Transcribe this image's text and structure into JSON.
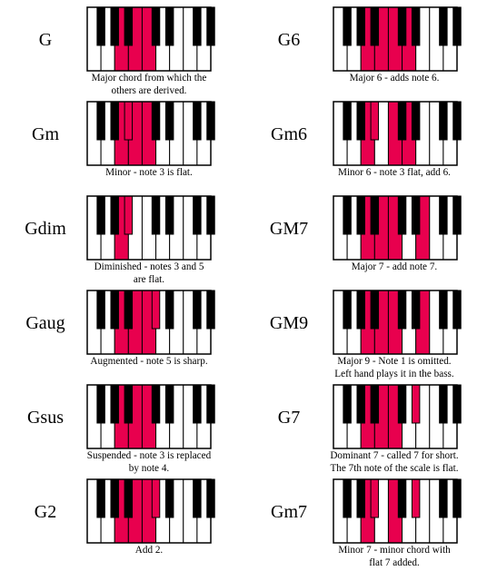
{
  "title": "",
  "colors": {
    "highlight": "#e8004e",
    "black_key": "#000000",
    "white_key": "#ffffff",
    "background": "#ffffff"
  },
  "legend": {
    "white_key_count": 9,
    "black_key_count": 7
  },
  "chords": [
    {
      "name": "G",
      "description": "Major chord from which the\nothers are derived.",
      "highlighted_keys": [
        "W3",
        "W4",
        "B4",
        "W5"
      ]
    },
    {
      "name": "G6",
      "description": "Major 6 - adds note 6.",
      "highlighted_keys": [
        "W3",
        "W4",
        "B4",
        "W5",
        "W6"
      ]
    },
    {
      "name": "Gm",
      "description": "Minor - note 3 is flat.",
      "highlighted_keys": [
        "W3",
        "B3",
        "W4",
        "W5"
      ]
    },
    {
      "name": "Gm6",
      "description": "Minor 6 - note 3 flat, add 6.",
      "highlighted_keys": [
        "W3",
        "B3",
        "W5",
        "W6"
      ]
    },
    {
      "name": "Gdim",
      "description": "Diminished - notes 3 and 5\nare flat.",
      "highlighted_keys": [
        "W3",
        "B3",
        "B4"
      ]
    },
    {
      "name": "GM7",
      "description": "Major 7 - add note 7.",
      "highlighted_keys": [
        "W3",
        "W4",
        "W5",
        "W7"
      ]
    },
    {
      "name": "Gaug",
      "description": "Augmented - note 5 is sharp.",
      "highlighted_keys": [
        "W3",
        "W4",
        "B4",
        "W5",
        "B5"
      ]
    },
    {
      "name": "GM9",
      "description": "Major 9 - Note 1 is omitted.\nLeft hand plays it in the bass.",
      "highlighted_keys": [
        "W3",
        "W4",
        "W5",
        "W7"
      ]
    },
    {
      "name": "Gsus",
      "description": "Suspended - note 3 is replaced\nby note 4.",
      "highlighted_keys": [
        "W3",
        "W4",
        "B4",
        "W5"
      ]
    },
    {
      "name": "G7",
      "description": "Dominant 7 - called 7 for short.\nThe 7th note of the scale is flat.",
      "highlighted_keys": [
        "W3",
        "W4",
        "B4",
        "W5",
        "B6"
      ]
    },
    {
      "name": "G2",
      "description": "Add 2.",
      "highlighted_keys": [
        "W3",
        "W4",
        "B4",
        "W5",
        "B5"
      ]
    },
    {
      "name": "Gm7",
      "description": "Minor 7 - minor chord with\nflat 7 added.",
      "highlighted_keys": [
        "W3",
        "B3",
        "W5",
        "B6"
      ]
    }
  ]
}
